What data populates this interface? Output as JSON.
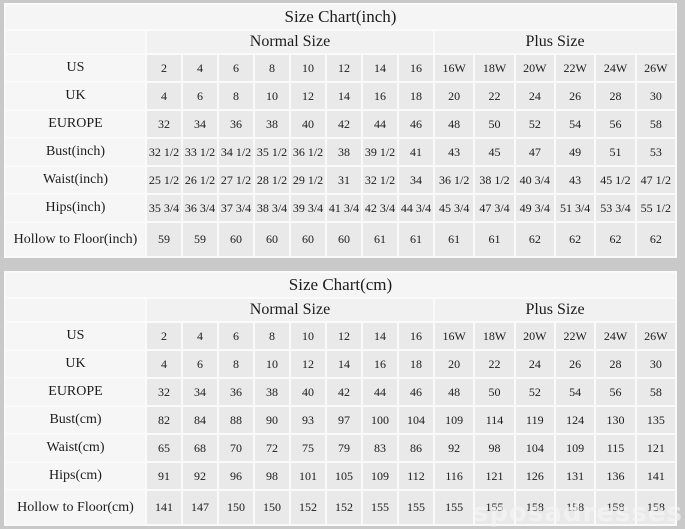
{
  "page": {
    "background_color": "#c9c9c9",
    "cell_color": "#e9e9e9",
    "label_color": "#f6f6f6",
    "watermark": "sposadresses"
  },
  "tables": [
    {
      "title": "Size Chart(inch)",
      "group_headers": {
        "normal": "Normal Size",
        "plus": "Plus Size"
      },
      "columns": {
        "normal_count": 8,
        "plus_count": 6
      },
      "rows": [
        {
          "label": "US",
          "values": [
            "2",
            "4",
            "6",
            "8",
            "10",
            "12",
            "14",
            "16",
            "16W",
            "18W",
            "20W",
            "22W",
            "24W",
            "26W"
          ]
        },
        {
          "label": "UK",
          "values": [
            "4",
            "6",
            "8",
            "10",
            "12",
            "14",
            "16",
            "18",
            "20",
            "22",
            "24",
            "26",
            "28",
            "30"
          ]
        },
        {
          "label": "EUROPE",
          "values": [
            "32",
            "34",
            "36",
            "38",
            "40",
            "42",
            "44",
            "46",
            "48",
            "50",
            "52",
            "54",
            "56",
            "58"
          ]
        },
        {
          "label": "Bust(inch)",
          "values": [
            "32 1/2",
            "33 1/2",
            "34 1/2",
            "35 1/2",
            "36 1/2",
            "38",
            "39 1/2",
            "41",
            "43",
            "45",
            "47",
            "49",
            "51",
            "53"
          ]
        },
        {
          "label": "Waist(inch)",
          "values": [
            "25 1/2",
            "26 1/2",
            "27 1/2",
            "28 1/2",
            "29 1/2",
            "31",
            "32 1/2",
            "34",
            "36 1/2",
            "38 1/2",
            "40 3/4",
            "43",
            "45 1/2",
            "47 1/2"
          ]
        },
        {
          "label": "Hips(inch)",
          "values": [
            "35 3/4",
            "36 3/4",
            "37 3/4",
            "38 3/4",
            "39 3/4",
            "41 3/4",
            "42 3/4",
            "44 3/4",
            "45 3/4",
            "47 3/4",
            "49 3/4",
            "51 3/4",
            "53 3/4",
            "55 1/2"
          ]
        },
        {
          "label": "Hollow to Floor(inch)",
          "values": [
            "59",
            "59",
            "60",
            "60",
            "60",
            "60",
            "61",
            "61",
            "61",
            "61",
            "62",
            "62",
            "62",
            "62"
          ]
        }
      ]
    },
    {
      "title": "Size Chart(cm)",
      "group_headers": {
        "normal": "Normal Size",
        "plus": "Plus Size"
      },
      "columns": {
        "normal_count": 8,
        "plus_count": 6
      },
      "rows": [
        {
          "label": "US",
          "values": [
            "2",
            "4",
            "6",
            "8",
            "10",
            "12",
            "14",
            "16",
            "16W",
            "18W",
            "20W",
            "22W",
            "24W",
            "26W"
          ]
        },
        {
          "label": "UK",
          "values": [
            "4",
            "6",
            "8",
            "10",
            "12",
            "14",
            "16",
            "18",
            "20",
            "22",
            "24",
            "26",
            "28",
            "30"
          ]
        },
        {
          "label": "EUROPE",
          "values": [
            "32",
            "34",
            "36",
            "38",
            "40",
            "42",
            "44",
            "46",
            "48",
            "50",
            "52",
            "54",
            "56",
            "58"
          ]
        },
        {
          "label": "Bust(cm)",
          "values": [
            "82",
            "84",
            "88",
            "90",
            "93",
            "97",
            "100",
            "104",
            "109",
            "114",
            "119",
            "124",
            "130",
            "135"
          ]
        },
        {
          "label": "Waist(cm)",
          "values": [
            "65",
            "68",
            "70",
            "72",
            "75",
            "79",
            "83",
            "86",
            "92",
            "98",
            "104",
            "109",
            "115",
            "121"
          ]
        },
        {
          "label": "Hips(cm)",
          "values": [
            "91",
            "92",
            "96",
            "98",
            "101",
            "105",
            "109",
            "112",
            "116",
            "121",
            "126",
            "131",
            "136",
            "141"
          ]
        },
        {
          "label": "Hollow to Floor(cm)",
          "values": [
            "141",
            "147",
            "150",
            "150",
            "152",
            "152",
            "155",
            "155",
            "155",
            "155",
            "158",
            "158",
            "158",
            "158"
          ]
        }
      ]
    }
  ]
}
